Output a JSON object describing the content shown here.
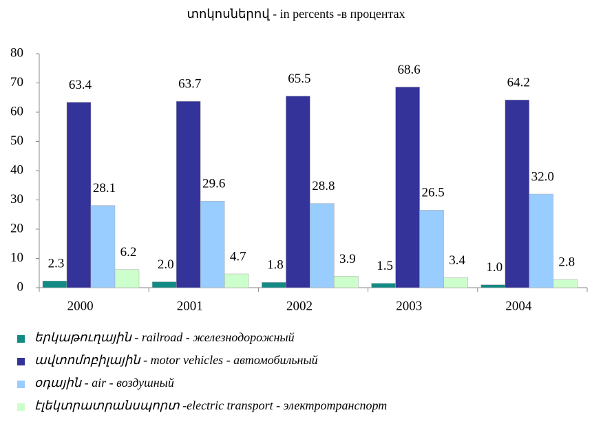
{
  "chart_data": {
    "type": "bar",
    "title": "տոկոսներով - in percents -в процентах",
    "categories": [
      "2000",
      "2001",
      "2002",
      "2003",
      "2004"
    ],
    "series": [
      {
        "name": "երկաթուղային - railroad - железнодорожный",
        "color": "#138a84",
        "values": [
          2.3,
          2.0,
          1.8,
          1.5,
          1.0
        ],
        "value_labels": [
          "2.3",
          "2.0",
          "1.8",
          "1.5",
          "1.0"
        ]
      },
      {
        "name": "ավտոմոբիլային - motor vehicles - автомобильный",
        "color": "#333399",
        "values": [
          63.4,
          63.7,
          65.5,
          68.6,
          64.2
        ],
        "value_labels": [
          "63.4",
          "63.7",
          "65.5",
          "68.6",
          "64.2"
        ]
      },
      {
        "name": "օդային - air - воздушный",
        "color": "#99ccff",
        "values": [
          28.1,
          29.6,
          28.8,
          26.5,
          32.0
        ],
        "value_labels": [
          "28.1",
          "29.6",
          "28.8",
          "26.5",
          "32.0"
        ]
      },
      {
        "name": "էլեկտրատրանսպորտ -electric transport - электротранспорт",
        "color": "#ccffcc",
        "values": [
          6.2,
          4.7,
          3.9,
          3.4,
          2.8
        ],
        "value_labels": [
          "6.2",
          "4.7",
          "3.9",
          "3.4",
          "2.8"
        ]
      }
    ],
    "ylim": [
      0,
      80
    ],
    "yticks": [
      0,
      10,
      20,
      30,
      40,
      50,
      60,
      70,
      80
    ],
    "grid": false,
    "legend": "bottom"
  }
}
